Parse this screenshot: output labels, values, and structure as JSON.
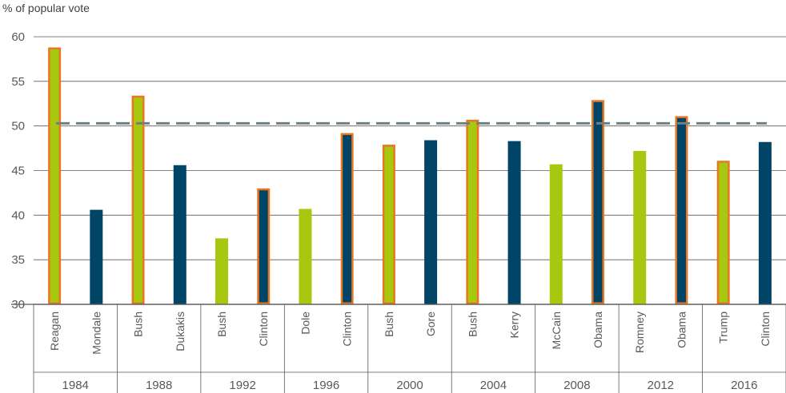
{
  "chart_data": {
    "type": "bar",
    "ylabel": "% of popular vote",
    "ylim": [
      30,
      60
    ],
    "yticks": [
      30,
      35,
      40,
      45,
      50,
      55,
      60
    ],
    "reference_line": 50.3,
    "colors": {
      "republican": "#a8c70f",
      "democrat": "#004466",
      "winner_outline": "#e87722",
      "reference": "#6e8084",
      "grid": "#595959"
    },
    "groups": [
      {
        "year": "1984",
        "bars": [
          {
            "candidate": "Reagan",
            "party": "republican",
            "value": 58.8,
            "winner": true
          },
          {
            "candidate": "Mondale",
            "party": "democrat",
            "value": 40.6,
            "winner": false
          }
        ]
      },
      {
        "year": "1988",
        "bars": [
          {
            "candidate": "Bush",
            "party": "republican",
            "value": 53.4,
            "winner": true
          },
          {
            "candidate": "Dukakis",
            "party": "democrat",
            "value": 45.6,
            "winner": false
          }
        ]
      },
      {
        "year": "1992",
        "bars": [
          {
            "candidate": "Bush",
            "party": "republican",
            "value": 37.4,
            "winner": false
          },
          {
            "candidate": "Clinton",
            "party": "democrat",
            "value": 43.0,
            "winner": true
          }
        ]
      },
      {
        "year": "1996",
        "bars": [
          {
            "candidate": "Dole",
            "party": "republican",
            "value": 40.7,
            "winner": false
          },
          {
            "candidate": "Clinton",
            "party": "democrat",
            "value": 49.2,
            "winner": true
          }
        ]
      },
      {
        "year": "2000",
        "bars": [
          {
            "candidate": "Bush",
            "party": "republican",
            "value": 47.9,
            "winner": true
          },
          {
            "candidate": "Gore",
            "party": "democrat",
            "value": 48.4,
            "winner": false
          }
        ]
      },
      {
        "year": "2004",
        "bars": [
          {
            "candidate": "Bush",
            "party": "republican",
            "value": 50.7,
            "winner": true
          },
          {
            "candidate": "Kerry",
            "party": "democrat",
            "value": 48.3,
            "winner": false
          }
        ]
      },
      {
        "year": "2008",
        "bars": [
          {
            "candidate": "McCain",
            "party": "republican",
            "value": 45.7,
            "winner": false
          },
          {
            "candidate": "Obama",
            "party": "democrat",
            "value": 52.9,
            "winner": true
          }
        ]
      },
      {
        "year": "2012",
        "bars": [
          {
            "candidate": "Romney",
            "party": "republican",
            "value": 47.2,
            "winner": false
          },
          {
            "candidate": "Obama",
            "party": "democrat",
            "value": 51.1,
            "winner": true
          }
        ]
      },
      {
        "year": "2016",
        "bars": [
          {
            "candidate": "Trump",
            "party": "republican",
            "value": 46.1,
            "winner": true
          },
          {
            "candidate": "Clinton",
            "party": "democrat",
            "value": 48.2,
            "winner": false
          }
        ]
      }
    ]
  }
}
